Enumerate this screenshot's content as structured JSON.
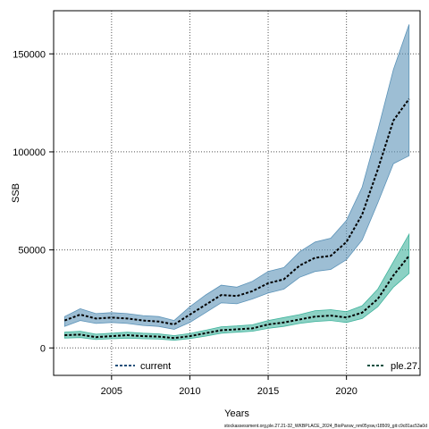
{
  "chart_data": {
    "type": "line",
    "title": "",
    "xlabel": "Years",
    "ylabel": "SSB",
    "xlim": [
      2001.3,
      2024.7
    ],
    "ylim": [
      -14000,
      172000
    ],
    "x_ticks": [
      2005,
      2010,
      2015,
      2020
    ],
    "y_ticks": [
      0,
      50000,
      100000,
      150000
    ],
    "x_tick_labels": [
      "2005",
      "2010",
      "2015",
      "2020"
    ],
    "y_tick_labels": [
      "0",
      "50000",
      "100000",
      "150000"
    ],
    "grid": true,
    "legend_placement": "bottom",
    "footnote": "stockassessment.org,ple.27.21-32_WKBPLACE_2024_BioParsw_nm05ysw,r18509_git:c9c81ac53a0d",
    "years": [
      2002,
      2003,
      2004,
      2005,
      2006,
      2007,
      2008,
      2009,
      2010,
      2011,
      2012,
      2013,
      2014,
      2015,
      2016,
      2017,
      2018,
      2019,
      2020,
      2021,
      2022,
      2023,
      2024
    ],
    "series": [
      {
        "name": "current",
        "color": "#1f4e79",
        "band_color": "#5c93b8",
        "values": [
          14000,
          17000,
          15000,
          15500,
          15000,
          14000,
          13500,
          12000,
          17000,
          22000,
          27000,
          26500,
          29000,
          33000,
          35000,
          42000,
          46000,
          47000,
          54000,
          68000,
          91000,
          116000,
          127000
        ],
        "lower": [
          11000,
          14000,
          12500,
          13000,
          12500,
          11500,
          11000,
          9500,
          13000,
          18000,
          23000,
          22500,
          25000,
          28000,
          30000,
          36000,
          39000,
          40000,
          45000,
          55000,
          74000,
          94000,
          98000
        ],
        "upper": [
          16000,
          20000,
          17500,
          18000,
          17500,
          16500,
          16000,
          14000,
          21000,
          27000,
          32000,
          31000,
          34000,
          39000,
          41000,
          49000,
          54000,
          56000,
          65000,
          82000,
          111000,
          142000,
          165000
        ]
      },
      {
        "name": "ple.27.",
        "color": "#0d4f40",
        "band_color": "#3fb39c",
        "values": [
          6500,
          6800,
          5500,
          6000,
          6500,
          6000,
          5800,
          5000,
          6000,
          7500,
          9000,
          9500,
          10000,
          12000,
          13000,
          14500,
          16000,
          16500,
          15500,
          18000,
          25000,
          37000,
          47000
        ],
        "lower": [
          5000,
          5300,
          4300,
          4700,
          5000,
          4700,
          4500,
          3900,
          4800,
          6000,
          7500,
          8000,
          8500,
          10000,
          11000,
          12500,
          13500,
          14000,
          13000,
          15000,
          21000,
          31000,
          38000
        ],
        "upper": [
          8000,
          8500,
          7000,
          7500,
          8000,
          7500,
          7200,
          6300,
          7400,
          9000,
          10800,
          11200,
          11800,
          14000,
          15500,
          17000,
          19000,
          19500,
          18500,
          21500,
          30000,
          44000,
          58000
        ]
      }
    ]
  }
}
